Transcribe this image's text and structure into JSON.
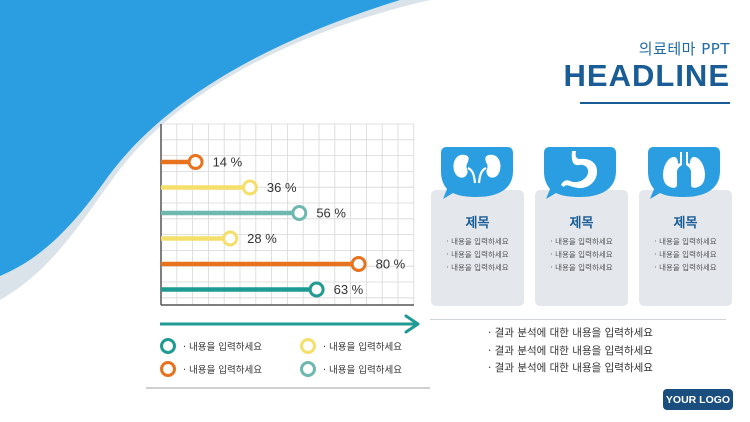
{
  "header": {
    "subtitle": "의료테마 PPT",
    "title": "HEADLINE"
  },
  "chart_data": {
    "type": "bar",
    "orientation": "horizontal",
    "values": [
      14,
      36,
      56,
      28,
      80,
      63
    ],
    "labels": [
      "14 %",
      "36 %",
      "56 %",
      "28 %",
      "80 %",
      "63 %"
    ],
    "colors": [
      "#e8731e",
      "#f5df6b",
      "#6fb8b0",
      "#f5df6b",
      "#e8731e",
      "#1f9b93"
    ],
    "xlim": [
      0,
      100
    ],
    "grid": true
  },
  "legend": [
    {
      "label": "· 내용을 입력하세요",
      "color": "#1f9b93"
    },
    {
      "label": "· 내용을 입력하세요",
      "color": "#f5df6b"
    },
    {
      "label": "· 내용을 입력하세요",
      "color": "#e8731e"
    },
    {
      "label": "· 내용을 입력하세요",
      "color": "#6fb8b0"
    }
  ],
  "cards": [
    {
      "icon": "kidney-icon",
      "title": "제목",
      "lines": [
        "· 내용을 입력하세요",
        "· 내용을 입력하세요",
        "· 내용을 입력하세요"
      ]
    },
    {
      "icon": "stomach-icon",
      "title": "제목",
      "lines": [
        "· 내용을 입력하세요",
        "· 내용을 입력하세요",
        "· 내용을 입력하세요"
      ]
    },
    {
      "icon": "lungs-icon",
      "title": "제목",
      "lines": [
        "· 내용을 입력하세요",
        "· 내용을 입력하세요",
        "· 내용을 입력하세요"
      ]
    }
  ],
  "bullets": [
    "· 결과 분석에 대한 내용을 입력하세요",
    "· 결과 분석에 대한 내용을 입력하세요",
    "· 결과 분석에 대한 내용을 입력하세요"
  ],
  "logo": "YOUR LOGO",
  "colors": {
    "brand_blue": "#2a9ee0",
    "dark_blue": "#1a5d96",
    "orange": "#e8731e",
    "yellow": "#f5df6b",
    "teal_light": "#6fb8b0",
    "teal": "#1f9b93"
  }
}
